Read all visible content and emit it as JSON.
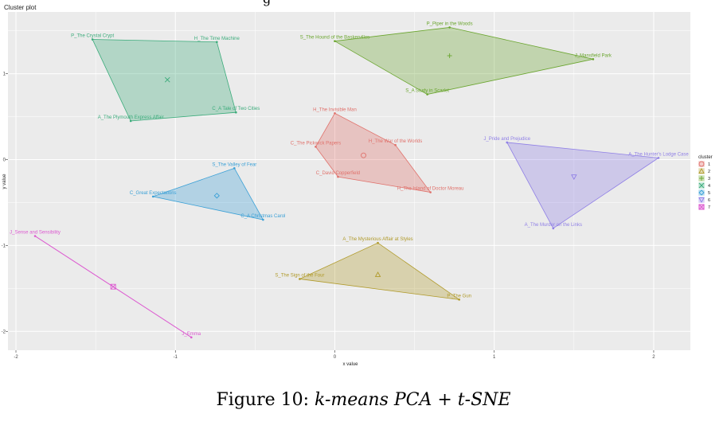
{
  "clipped_top_text": "g",
  "caption": {
    "prefix": "Figure 10:",
    "text": "k-means PCA + t-SNE"
  },
  "chart_data": {
    "type": "scatter",
    "title": "Cluster plot",
    "xlabel": "x value",
    "ylabel": "y value",
    "xlim": [
      -2.05,
      2.23
    ],
    "ylim": [
      -2.22,
      1.72
    ],
    "xticks": [
      -2,
      -1,
      0,
      1,
      2
    ],
    "yticks": [
      -2,
      -1,
      0,
      1
    ],
    "xtick_labels": [
      "-2",
      "-1",
      "0",
      "1",
      "2"
    ],
    "ytick_labels": [
      "-2",
      "-1",
      "0",
      "1"
    ],
    "grid": true,
    "legend_title": "cluster",
    "legend_position": "right",
    "series": [
      {
        "name": "1",
        "color": "#e0716b",
        "marker": "circle",
        "centroid": [
          0.18,
          0.05
        ],
        "points": [
          {
            "label": "H_The Invisible Man",
            "x": 0.0,
            "y": 0.54
          },
          {
            "label": "H_The War of the Worlds",
            "x": 0.38,
            "y": 0.17
          },
          {
            "label": "C_The Pickwick Papers",
            "x": -0.12,
            "y": 0.15
          },
          {
            "label": "C_David Copperfield",
            "x": 0.02,
            "y": -0.2
          },
          {
            "label": "H_The Island of Doctor Moreau",
            "x": 0.6,
            "y": -0.38
          }
        ]
      },
      {
        "name": "2",
        "color": "#b09a2a",
        "marker": "triangle",
        "centroid": [
          0.27,
          -1.34
        ],
        "points": [
          {
            "label": "A_The Mysterious Affair at Styles",
            "x": 0.27,
            "y": -0.97
          },
          {
            "label": "S_The Sign of the Four",
            "x": -0.22,
            "y": -1.39
          },
          {
            "label": "P_The Gun",
            "x": 0.78,
            "y": -1.63
          }
        ]
      },
      {
        "name": "3",
        "color": "#6aa52e",
        "marker": "cross",
        "centroid": [
          0.72,
          1.21
        ],
        "points": [
          {
            "label": "P_Piper in the Woods",
            "x": 0.72,
            "y": 1.54
          },
          {
            "label": "S_The Hound of the Baskervilles",
            "x": 0.0,
            "y": 1.38
          },
          {
            "label": "J_Mansfield Park",
            "x": 1.62,
            "y": 1.17
          },
          {
            "label": "S_A Study in Scarlet",
            "x": 0.58,
            "y": 0.76
          }
        ]
      },
      {
        "name": "4",
        "color": "#3aab7a",
        "marker": "x",
        "centroid": [
          -1.05,
          0.93
        ],
        "points": [
          {
            "label": "P_The Crystal Crypt",
            "x": -1.52,
            "y": 1.4
          },
          {
            "label": "H_The Time Machine",
            "x": -0.74,
            "y": 1.37
          },
          {
            "label": "C_A Tale of Two Cities",
            "x": -0.62,
            "y": 0.55
          },
          {
            "label": "A_The Plymouth Express Affair",
            "x": -1.28,
            "y": 0.45
          }
        ]
      },
      {
        "name": "5",
        "color": "#3aa0d6",
        "marker": "diamond",
        "centroid": [
          -0.74,
          -0.42
        ],
        "points": [
          {
            "label": "S_The Valley of Fear",
            "x": -0.63,
            "y": -0.1
          },
          {
            "label": "C_Great Expectations",
            "x": -1.14,
            "y": -0.43
          },
          {
            "label": "C_A Christmas Carol",
            "x": -0.45,
            "y": -0.7
          }
        ]
      },
      {
        "name": "6",
        "color": "#8f7fe6",
        "marker": "triangle-down",
        "centroid": [
          1.5,
          -0.2
        ],
        "points": [
          {
            "label": "J_Pride and Prejudice",
            "x": 1.08,
            "y": 0.2
          },
          {
            "label": "A_The Hunter's Lodge Case",
            "x": 2.03,
            "y": 0.02
          },
          {
            "label": "A_The Murder on the Links",
            "x": 1.37,
            "y": -0.8
          }
        ]
      },
      {
        "name": "7",
        "color": "#dc5ad0",
        "marker": "square-x",
        "centroid": [
          -1.39,
          -1.48
        ],
        "points": [
          {
            "label": "J_Sense and Sensibility",
            "x": -1.88,
            "y": -0.89
          },
          {
            "label": "J_Emma",
            "x": -0.9,
            "y": -2.07
          }
        ]
      }
    ]
  }
}
